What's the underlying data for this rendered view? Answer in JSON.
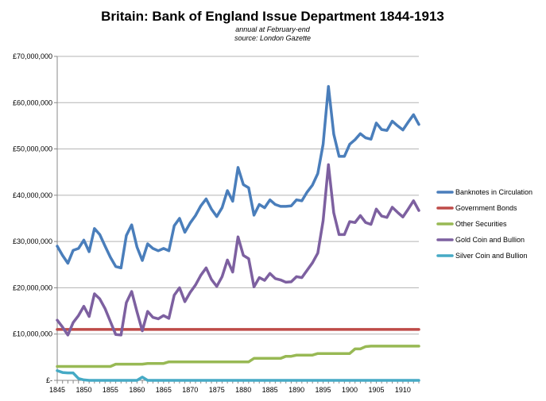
{
  "colors": {
    "banknotes": "#4a7ebb",
    "government_bonds": "#be4b48",
    "other_securities": "#98b954",
    "gold": "#7d60a0",
    "silver": "#46aac5"
  },
  "chart_data": {
    "type": "line",
    "title": "Britain: Bank of England Issue Department 1844-1913",
    "subtitle_lines": [
      "annual at February-end",
      "source: London Gazette"
    ],
    "xlabel": "",
    "ylabel": "",
    "xlim": [
      1845,
      1913
    ],
    "ylim": [
      0,
      70000000
    ],
    "y_tick_labels": [
      "£-",
      "£10,000,000",
      "£20,000,000",
      "£30,000,000",
      "£40,000,000",
      "£50,000,000",
      "£60,000,000",
      "£70,000,000"
    ],
    "y_tick_values": [
      0,
      10000000,
      20000000,
      30000000,
      40000000,
      50000000,
      60000000,
      70000000
    ],
    "x_tick_labels": [
      "1845",
      "1850",
      "1855",
      "1860",
      "1865",
      "1870",
      "1875",
      "1880",
      "1885",
      "1890",
      "1895",
      "1900",
      "1905",
      "1910"
    ],
    "x_tick_values": [
      1845,
      1850,
      1855,
      1860,
      1865,
      1870,
      1875,
      1880,
      1885,
      1890,
      1895,
      1900,
      1905,
      1910
    ],
    "grid": "horizontal",
    "legend_position": "right",
    "x": [
      1845,
      1846,
      1847,
      1848,
      1849,
      1850,
      1851,
      1852,
      1853,
      1854,
      1855,
      1856,
      1857,
      1858,
      1859,
      1860,
      1861,
      1862,
      1863,
      1864,
      1865,
      1866,
      1867,
      1868,
      1869,
      1870,
      1871,
      1872,
      1873,
      1874,
      1875,
      1876,
      1877,
      1878,
      1879,
      1880,
      1881,
      1882,
      1883,
      1884,
      1885,
      1886,
      1887,
      1888,
      1889,
      1890,
      1891,
      1892,
      1893,
      1894,
      1895,
      1896,
      1897,
      1898,
      1899,
      1900,
      1901,
      1902,
      1903,
      1904,
      1905,
      1906,
      1907,
      1908,
      1909,
      1910,
      1911,
      1912,
      1913
    ],
    "series": [
      {
        "name": "Banknotes in Circulation",
        "color_key": "banknotes",
        "values": [
          29000000,
          27000000,
          25300000,
          28100000,
          28500000,
          30300000,
          27800000,
          32800000,
          31500000,
          29000000,
          26600000,
          24600000,
          24300000,
          31300000,
          33600000,
          28800000,
          25900000,
          29500000,
          28500000,
          28000000,
          28500000,
          28000000,
          33400000,
          35000000,
          32000000,
          34000000,
          35600000,
          37700000,
          39200000,
          37000000,
          35400000,
          37300000,
          41000000,
          38700000,
          46000000,
          42300000,
          41600000,
          35700000,
          38000000,
          37300000,
          39000000,
          38000000,
          37600000,
          37600000,
          37700000,
          39000000,
          38800000,
          40700000,
          42200000,
          44700000,
          51000000,
          63500000,
          53200000,
          48400000,
          48400000,
          51000000,
          52000000,
          53300000,
          52400000,
          52100000,
          55600000,
          54200000,
          54000000,
          56000000,
          55000000,
          54100000,
          55800000,
          57400000,
          55300000
        ]
      },
      {
        "name": "Government Bonds",
        "color_key": "government_bonds",
        "values": [
          11000000,
          11000000,
          11000000,
          11000000,
          11000000,
          11000000,
          11000000,
          11000000,
          11000000,
          11000000,
          11000000,
          11000000,
          11000000,
          11000000,
          11000000,
          11000000,
          11000000,
          11000000,
          11000000,
          11000000,
          11000000,
          11000000,
          11000000,
          11000000,
          11000000,
          11000000,
          11000000,
          11000000,
          11000000,
          11000000,
          11000000,
          11000000,
          11000000,
          11000000,
          11000000,
          11000000,
          11000000,
          11000000,
          11000000,
          11000000,
          11000000,
          11000000,
          11000000,
          11000000,
          11000000,
          11000000,
          11000000,
          11000000,
          11000000,
          11000000,
          11000000,
          11000000,
          11000000,
          11000000,
          11000000,
          11000000,
          11000000,
          11000000,
          11000000,
          11000000,
          11000000,
          11000000,
          11000000,
          11000000,
          11000000,
          11000000,
          11000000,
          11000000,
          11000000
        ]
      },
      {
        "name": "Other Securities",
        "color_key": "other_securities",
        "values": [
          3000000,
          3000000,
          3000000,
          3000000,
          3000000,
          3000000,
          3000000,
          3000000,
          3000000,
          3000000,
          3000000,
          3500000,
          3500000,
          3500000,
          3500000,
          3500000,
          3500000,
          3650000,
          3650000,
          3650000,
          3650000,
          4000000,
          4000000,
          4000000,
          4000000,
          4000000,
          4000000,
          4000000,
          4000000,
          4000000,
          4000000,
          4000000,
          4000000,
          4000000,
          4000000,
          4000000,
          4000000,
          4750000,
          4750000,
          4750000,
          4750000,
          4750000,
          4750000,
          5200000,
          5200000,
          5450000,
          5450000,
          5450000,
          5450000,
          5800000,
          5800000,
          5800000,
          5800000,
          5800000,
          5800000,
          5800000,
          6800000,
          6800000,
          7300000,
          7400000,
          7400000,
          7400000,
          7400000,
          7400000,
          7400000,
          7400000,
          7400000,
          7400000,
          7400000
        ]
      },
      {
        "name": "Gold Coin and Bullion",
        "color_key": "gold",
        "values": [
          13000000,
          11500000,
          9800000,
          12500000,
          14000000,
          16000000,
          13800000,
          18700000,
          17600000,
          15500000,
          12700000,
          9900000,
          9800000,
          16800000,
          19200000,
          14800000,
          10700000,
          14900000,
          13600000,
          13300000,
          14000000,
          13400000,
          18400000,
          20000000,
          17000000,
          19000000,
          20600000,
          22700000,
          24300000,
          21800000,
          20300000,
          22400000,
          26000000,
          23400000,
          31000000,
          27000000,
          26300000,
          20200000,
          22200000,
          21600000,
          23100000,
          22000000,
          21700000,
          21200000,
          21300000,
          22400000,
          22200000,
          23800000,
          25400000,
          27500000,
          34500000,
          46600000,
          36200000,
          31500000,
          31500000,
          34300000,
          34100000,
          35600000,
          34100000,
          33700000,
          37000000,
          35500000,
          35200000,
          37400000,
          36300000,
          35300000,
          37000000,
          38800000,
          36700000
        ]
      },
      {
        "name": "Silver Coin and Bullion",
        "color_key": "silver",
        "values": [
          2100000,
          1700000,
          1600000,
          1600000,
          400000,
          100000,
          0,
          0,
          0,
          0,
          0,
          0,
          0,
          0,
          0,
          0,
          700000,
          0,
          0,
          0,
          0,
          0,
          0,
          0,
          0,
          0,
          0,
          0,
          0,
          0,
          0,
          0,
          0,
          0,
          0,
          0,
          0,
          0,
          0,
          0,
          0,
          0,
          0,
          0,
          0,
          0,
          0,
          0,
          0,
          0,
          0,
          0,
          0,
          0,
          0,
          0,
          0,
          0,
          0,
          0,
          0,
          0,
          0,
          0,
          0,
          0,
          0,
          0,
          0
        ]
      }
    ]
  }
}
